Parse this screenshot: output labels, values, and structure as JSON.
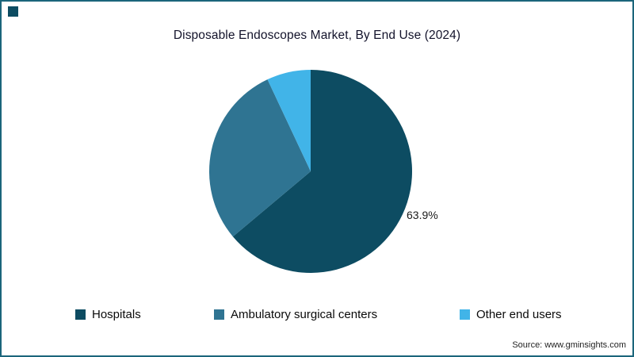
{
  "source": "Source: www.gminsights.com",
  "colors": {
    "frame_border": "#1b657b",
    "corner_accent": "#0d4c62"
  },
  "chart_data": {
    "type": "pie",
    "title": "Disposable Endoscopes Market, By End Use (2024)",
    "unit": "%",
    "slices": [
      {
        "label": "Hospitals",
        "value": 63.9,
        "data_label": "63.9%",
        "color": "#0d4c62"
      },
      {
        "label": "Ambulatory surgical centers",
        "value": 29.1,
        "data_label": "",
        "color": "#2f7492"
      },
      {
        "label": "Other end users",
        "value": 7.0,
        "data_label": "",
        "color": "#41b4e8"
      }
    ],
    "start_angle_deg": 0,
    "direction": "clockwise",
    "legend_position": "bottom",
    "data_label_position": "outside-right"
  }
}
